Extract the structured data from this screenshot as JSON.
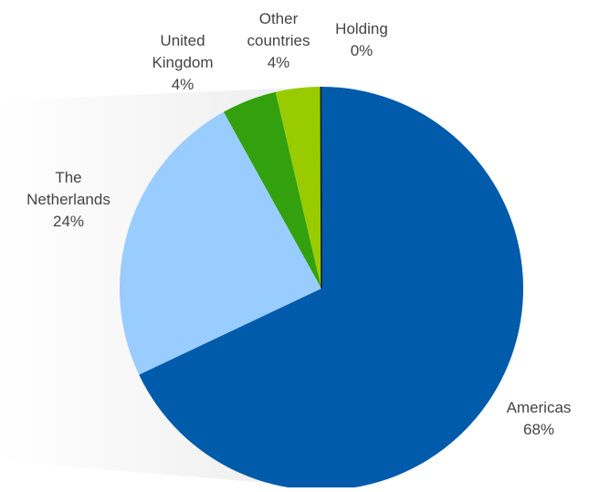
{
  "chart_data": {
    "type": "pie",
    "title": "",
    "start_angle_deg": 90,
    "direction": "clockwise",
    "slices": [
      {
        "label_lines": [
          "Americas"
        ],
        "pct_label": "68%",
        "value": 68.0,
        "color": "#005bab"
      },
      {
        "label_lines": [
          "The",
          "Netherlands"
        ],
        "pct_label": "24%",
        "value": 24.0,
        "color": "#99ccff"
      },
      {
        "label_lines": [
          "United",
          "Kingdom"
        ],
        "pct_label": "4%",
        "value": 4.4,
        "color": "#33a10d"
      },
      {
        "label_lines": [
          "Other",
          "countries"
        ],
        "pct_label": "4%",
        "value": 3.6,
        "color": "#99cc00"
      },
      {
        "label_lines": [
          "Holding"
        ],
        "pct_label": "0%",
        "value": 0.05,
        "color": "#1a1a1a"
      }
    ]
  }
}
